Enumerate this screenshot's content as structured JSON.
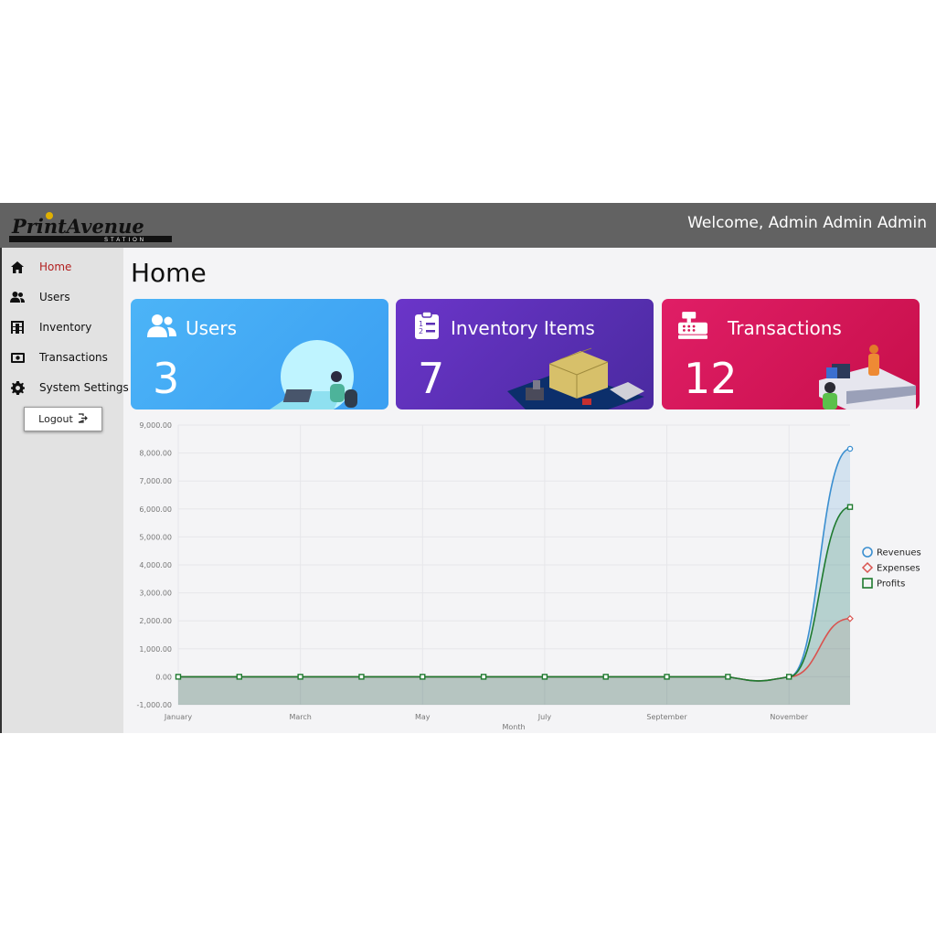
{
  "header": {
    "logo_text": "PrintAvenue",
    "logo_sub": "STATION",
    "welcome": "Welcome, Admin Admin Admin"
  },
  "sidebar": {
    "items": [
      {
        "label": "Home",
        "icon": "home-icon",
        "active": true
      },
      {
        "label": "Users",
        "icon": "users-icon",
        "active": false
      },
      {
        "label": "Inventory",
        "icon": "inventory-icon",
        "active": false
      },
      {
        "label": "Transactions",
        "icon": "transactions-icon",
        "active": false
      },
      {
        "label": "System Settings",
        "icon": "gear-icon",
        "active": false
      }
    ],
    "logout_label": "Logout"
  },
  "main": {
    "title": "Home",
    "cards": [
      {
        "title": "Users",
        "value": "3",
        "icon": "users-icon",
        "color": "#43a9f5"
      },
      {
        "title": "Inventory Items",
        "value": "7",
        "icon": "clipboard-list-icon",
        "color": "#5b30b5"
      },
      {
        "title": "Transactions",
        "value": "12",
        "icon": "cash-register-icon",
        "color": "#d81759"
      }
    ]
  },
  "chart_data": {
    "type": "area",
    "xlabel": "Month",
    "ylabel": "",
    "ylim": [
      -1000,
      9000
    ],
    "yticks": [
      "-1,000.00",
      "0.00",
      "1,000.00",
      "2,000.00",
      "3,000.00",
      "4,000.00",
      "5,000.00",
      "6,000.00",
      "7,000.00",
      "8,000.00",
      "9,000.00"
    ],
    "xtick_labels": [
      "January",
      "",
      "March",
      "",
      "May",
      "",
      "July",
      "",
      "September",
      "",
      "November",
      ""
    ],
    "categories": [
      "January",
      "February",
      "March",
      "April",
      "May",
      "June",
      "July",
      "August",
      "September",
      "October",
      "November",
      "December"
    ],
    "legend_position": "right",
    "grid": true,
    "series": [
      {
        "name": "Revenues",
        "color": "#3b8fd0",
        "marker": "circle",
        "values": [
          0,
          0,
          0,
          0,
          0,
          0,
          0,
          0,
          0,
          0,
          0,
          8150
        ]
      },
      {
        "name": "Expenses",
        "color": "#d9534f",
        "marker": "diamond",
        "values": [
          0,
          0,
          0,
          0,
          0,
          0,
          0,
          0,
          0,
          0,
          0,
          2080
        ]
      },
      {
        "name": "Profits",
        "color": "#1e7a2e",
        "marker": "square",
        "values": [
          0,
          0,
          0,
          0,
          0,
          0,
          0,
          0,
          0,
          0,
          0,
          6070
        ]
      }
    ]
  }
}
